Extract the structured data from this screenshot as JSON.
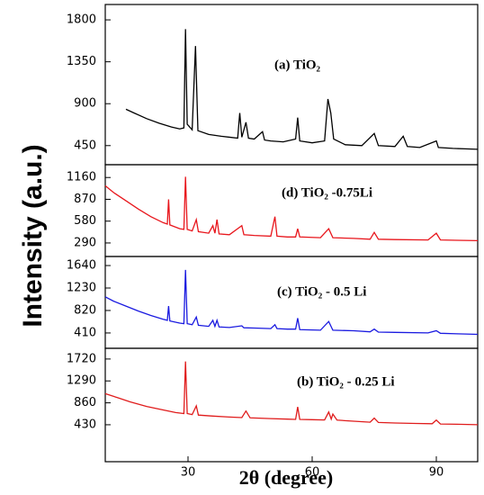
{
  "chart_data": [
    {
      "type": "line",
      "label": "(a) TiO₂",
      "ylabel": "Intensity (a.u.)",
      "xlim": [
        10,
        100
      ],
      "ylim": [
        245,
        1965
      ],
      "yticks": [
        450,
        900,
        1350,
        1800
      ],
      "series": [
        {
          "name": "(a) TiO₂",
          "color": "#000000",
          "x": [
            15,
            17,
            20,
            23,
            26,
            28,
            29,
            29.4,
            29.8,
            31,
            31.8,
            32.4,
            35,
            38,
            42,
            42.5,
            43,
            44,
            44.6,
            46,
            48,
            48.5,
            50,
            53,
            56,
            56.5,
            57,
            60,
            63,
            63.8,
            64.5,
            65.2,
            68,
            72,
            75,
            76,
            80,
            82,
            83,
            86,
            90,
            90.5,
            94,
            97,
            100
          ],
          "values": [
            840,
            800,
            740,
            690,
            650,
            630,
            640,
            1700,
            680,
            620,
            1520,
            610,
            570,
            550,
            530,
            800,
            540,
            700,
            530,
            520,
            600,
            510,
            500,
            490,
            520,
            750,
            500,
            480,
            500,
            950,
            800,
            520,
            460,
            450,
            580,
            450,
            440,
            550,
            440,
            430,
            500,
            430,
            420,
            415,
            410
          ]
        }
      ]
    },
    {
      "type": "line",
      "label": "(d)  TiO₂ -0.75Li",
      "xlim": [
        10,
        100
      ],
      "ylim": [
        110,
        1330
      ],
      "yticks": [
        290,
        580,
        870,
        1160
      ],
      "series": [
        {
          "name": "(d)  TiO₂ -0.75Li",
          "color": "#e8161c",
          "x": [
            10,
            12,
            15,
            18,
            21,
            24,
            25,
            25.3,
            25.6,
            28,
            29,
            29.4,
            29.8,
            31,
            32,
            32.5,
            35,
            36,
            36.5,
            37,
            37.5,
            40,
            43,
            43.5,
            46,
            50,
            51,
            51.5,
            54,
            56,
            56.5,
            57,
            62,
            64,
            65,
            70,
            74,
            75,
            76,
            80,
            88,
            90,
            91,
            95,
            100
          ],
          "values": [
            1050,
            960,
            850,
            740,
            640,
            560,
            540,
            870,
            530,
            480,
            470,
            1170,
            470,
            450,
            600,
            440,
            420,
            520,
            420,
            600,
            410,
            400,
            520,
            400,
            390,
            380,
            640,
            380,
            370,
            370,
            480,
            370,
            360,
            480,
            360,
            350,
            340,
            430,
            340,
            335,
            330,
            420,
            330,
            325,
            320
          ]
        }
      ]
    },
    {
      "type": "line",
      "label": "(c) TiO₂ - 0.5 Li",
      "xlim": [
        10,
        100
      ],
      "ylim": [
        130,
        1805
      ],
      "yticks": [
        410,
        820,
        1230,
        1640
      ],
      "series": [
        {
          "name": "(c) TiO₂ - 0.5 Li",
          "color": "#1a1ae0",
          "x": [
            10,
            12,
            15,
            18,
            21,
            24,
            25,
            25.3,
            25.6,
            28,
            29,
            29.4,
            29.8,
            31,
            32,
            32.5,
            35,
            36,
            36.5,
            37,
            37.5,
            40,
            43,
            43.5,
            46,
            50,
            51,
            51.5,
            54,
            56,
            56.5,
            57,
            62,
            64,
            65,
            70,
            74,
            75,
            76,
            80,
            88,
            90,
            91,
            95,
            100
          ],
          "values": [
            1070,
            990,
            900,
            810,
            730,
            660,
            640,
            900,
            630,
            590,
            580,
            1560,
            580,
            560,
            700,
            550,
            530,
            640,
            530,
            640,
            520,
            510,
            540,
            505,
            500,
            490,
            560,
            490,
            480,
            480,
            680,
            470,
            460,
            620,
            460,
            450,
            430,
            480,
            425,
            420,
            410,
            450,
            405,
            395,
            385
          ]
        }
      ]
    },
    {
      "type": "line",
      "label": "(b) TiO₂ - 0.25 Li",
      "xlabel": "2θ (degree)",
      "xlim": [
        10,
        100
      ],
      "xticks": [
        30,
        60,
        90
      ],
      "ylim": [
        -295,
        1930
      ],
      "yticks": [
        430,
        860,
        1290,
        1720
      ],
      "series": [
        {
          "name": "(b) TiO₂ - 0.25 Li",
          "color": "#e01c1c",
          "x": [
            10,
            13,
            16,
            20,
            24,
            27,
            29,
            29.4,
            29.8,
            31,
            32,
            32.5,
            36,
            40,
            43,
            44,
            45,
            50,
            54,
            56,
            56.5,
            57,
            60,
            63,
            64,
            64.6,
            65,
            66,
            70,
            74,
            75,
            76,
            80,
            85,
            89,
            90,
            91,
            95,
            100
          ],
          "values": [
            1040,
            960,
            880,
            790,
            720,
            670,
            650,
            1670,
            650,
            630,
            800,
            620,
            600,
            580,
            570,
            700,
            565,
            550,
            540,
            535,
            780,
            535,
            530,
            525,
            680,
            540,
            640,
            520,
            500,
            480,
            560,
            475,
            465,
            455,
            450,
            520,
            445,
            440,
            430
          ]
        }
      ]
    }
  ]
}
